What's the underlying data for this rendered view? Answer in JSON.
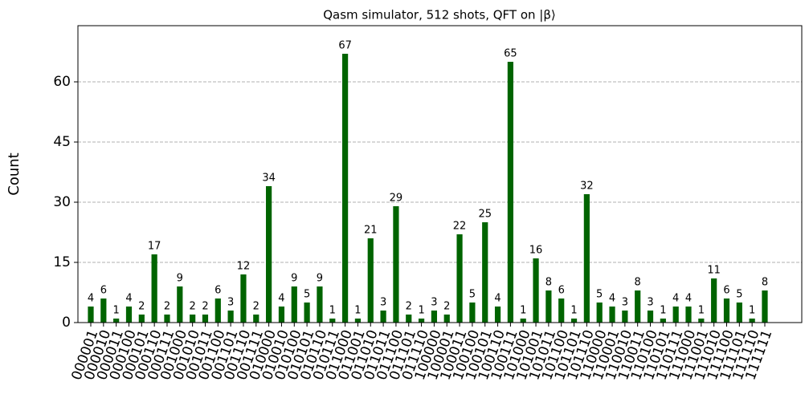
{
  "chart_data": {
    "type": "bar",
    "title": "Qasm simulator, 512 shots, QFT on |β⟩",
    "ylabel": "Count",
    "categories": [
      "000001",
      "000010",
      "000011",
      "000100",
      "000101",
      "000110",
      "000111",
      "001000",
      "001010",
      "001011",
      "001100",
      "001101",
      "001110",
      "001111",
      "010000",
      "010010",
      "010100",
      "010101",
      "010110",
      "010111",
      "011000",
      "011001",
      "011010",
      "011011",
      "011100",
      "011101",
      "011110",
      "100000",
      "100001",
      "100011",
      "100100",
      "100101",
      "100110",
      "100111",
      "101000",
      "101001",
      "101011",
      "101100",
      "101101",
      "101110",
      "110000",
      "110001",
      "110010",
      "110011",
      "110100",
      "110101",
      "110111",
      "111000",
      "111001",
      "111010",
      "111100",
      "111101",
      "111110",
      "111111"
    ],
    "values": [
      4,
      6,
      1,
      4,
      2,
      17,
      2,
      9,
      2,
      2,
      6,
      3,
      12,
      2,
      34,
      4,
      9,
      5,
      9,
      1,
      67,
      1,
      21,
      3,
      29,
      2,
      1,
      3,
      2,
      22,
      5,
      25,
      4,
      65,
      1,
      16,
      8,
      6,
      1,
      32,
      5,
      4,
      3,
      8,
      3,
      1,
      4,
      4,
      1,
      11,
      6,
      5,
      1,
      8
    ],
    "color": "#006400",
    "ylim": [
      0,
      74
    ],
    "yticks": [
      0,
      15,
      30,
      45,
      60
    ],
    "grid": true
  }
}
